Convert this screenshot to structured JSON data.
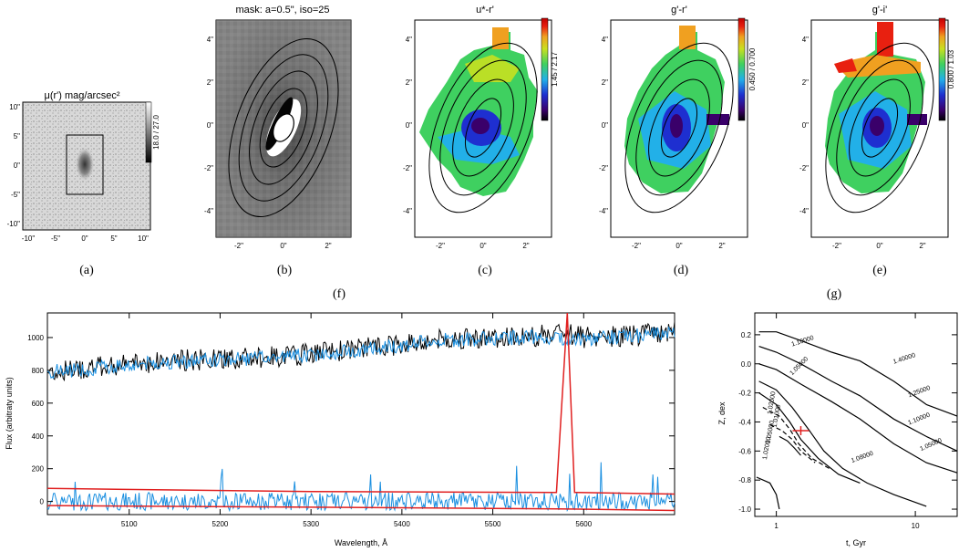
{
  "figure": {
    "panels": {
      "a": {
        "title": "μ(r') mag/arcsec²",
        "caption": "(a)",
        "colorbar_label": "18.0 / 27.0",
        "xticks": [
          "-10\"",
          "-5\"",
          "0\"",
          "5\"",
          "10\""
        ],
        "yticks": [
          "10\"",
          "5\"",
          "0\"",
          "-5\"",
          "-10\""
        ]
      },
      "b": {
        "title": "mask: a=0.5\", iso=25",
        "caption": "(b)",
        "xticks": [
          "-2\"",
          "0\"",
          "2\""
        ],
        "yticks": [
          "4\"",
          "2\"",
          "0\"",
          "-2\"",
          "-4\""
        ]
      },
      "c": {
        "title": "u*-r'",
        "caption": "(c)",
        "colorbar_label": "1.45 / 2.17",
        "xticks": [
          "-2\"",
          "0\"",
          "2\""
        ],
        "yticks": [
          "4\"",
          "2\"",
          "0\"",
          "-2\"",
          "-4\""
        ]
      },
      "d": {
        "title": "g'-r'",
        "caption": "(d)",
        "colorbar_label": "0.450 / 0.700",
        "xticks": [
          "-2\"",
          "0\"",
          "2\""
        ],
        "yticks": [
          "4\"",
          "2\"",
          "0\"",
          "-2\"",
          "-4\""
        ]
      },
      "e": {
        "title": "g'-i'",
        "caption": "(e)",
        "colorbar_label": "0.800 / 1.03",
        "xticks": [
          "-2\"",
          "0\"",
          "2\""
        ],
        "yticks": [
          "4\"",
          "2\"",
          "0\"",
          "-2\"",
          "-4\""
        ]
      },
      "f": {
        "caption": "(f)"
      },
      "g": {
        "caption": "(g)"
      }
    },
    "colors": {
      "observed": "#000000",
      "model": "#1a8fe0",
      "residual": "#1a8fe0",
      "error": "#e02020",
      "marker": "#e02020"
    }
  },
  "chart_data": [
    {
      "type": "line",
      "panel": "f",
      "xlabel": "Wavelength, Å",
      "ylabel": "Flux (arbitraty units)",
      "xlim": [
        5010,
        5700
      ],
      "ylim": [
        -80,
        1150
      ],
      "xticks": [
        5100,
        5200,
        5300,
        5400,
        5500,
        5600
      ],
      "yticks": [
        0,
        200,
        400,
        600,
        800,
        1000
      ],
      "series": [
        {
          "role": "observed",
          "x": [
            5010,
            5050,
            5100,
            5150,
            5200,
            5250,
            5300,
            5350,
            5400,
            5450,
            5500,
            5550,
            5575,
            5600,
            5650,
            5700
          ],
          "y": [
            790,
            810,
            840,
            860,
            870,
            880,
            900,
            930,
            960,
            990,
            1000,
            1010,
            1040,
            1000,
            1010,
            1040
          ]
        },
        {
          "role": "model",
          "x": [
            5010,
            5050,
            5100,
            5150,
            5200,
            5250,
            5300,
            5350,
            5400,
            5450,
            5500,
            5550,
            5600,
            5650,
            5700
          ],
          "y": [
            790,
            805,
            835,
            855,
            865,
            875,
            895,
            925,
            955,
            985,
            995,
            1005,
            995,
            1005,
            1035
          ]
        },
        {
          "role": "residual",
          "x": [
            5010,
            5700
          ],
          "y": [
            0,
            0
          ]
        },
        {
          "role": "error-upper",
          "x": [
            5010,
            5300,
            5570,
            5582,
            5590,
            5700
          ],
          "y": [
            80,
            60,
            55,
            1150,
            55,
            45
          ]
        },
        {
          "role": "error-lower",
          "x": [
            5010,
            5300,
            5570,
            5700
          ],
          "y": [
            -25,
            -35,
            -45,
            -55
          ]
        }
      ]
    },
    {
      "type": "contour",
      "panel": "g",
      "xlabel": "t, Gyr",
      "ylabel": "Z, dex",
      "xscale": "log",
      "xlim": [
        0.7,
        20
      ],
      "ylim": [
        -1.05,
        0.35
      ],
      "xticks": [
        1,
        10
      ],
      "yticks": [
        0.2,
        0.0,
        -0.2,
        -0.4,
        -0.6,
        -0.8,
        -1.0
      ],
      "contour_labels": [
        "1.10000",
        "1.05000",
        "1.40000",
        "1.25000",
        "1.10000",
        "1.05000",
        "1.08000",
        "1.02000",
        "1.01000",
        "1.05000",
        "1.02000"
      ],
      "best_fit": {
        "t": 1.5,
        "z": -0.46
      }
    }
  ]
}
